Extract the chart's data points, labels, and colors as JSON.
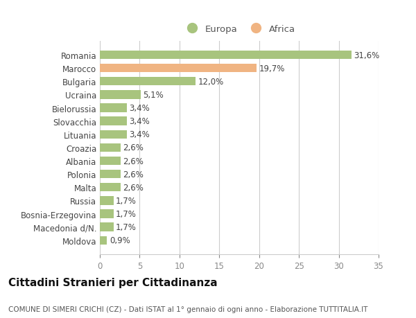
{
  "categories": [
    "Romania",
    "Marocco",
    "Bulgaria",
    "Ucraina",
    "Bielorussia",
    "Slovacchia",
    "Lituania",
    "Croazia",
    "Albania",
    "Polonia",
    "Malta",
    "Russia",
    "Bosnia-Erzegovina",
    "Macedonia d/N.",
    "Moldova"
  ],
  "values": [
    31.6,
    19.7,
    12.0,
    5.1,
    3.4,
    3.4,
    3.4,
    2.6,
    2.6,
    2.6,
    2.6,
    1.7,
    1.7,
    1.7,
    0.9
  ],
  "labels": [
    "31,6%",
    "19,7%",
    "12,0%",
    "5,1%",
    "3,4%",
    "3,4%",
    "3,4%",
    "2,6%",
    "2,6%",
    "2,6%",
    "2,6%",
    "1,7%",
    "1,7%",
    "1,7%",
    "0,9%"
  ],
  "colors": [
    "#a8c47e",
    "#f0b482",
    "#a8c47e",
    "#a8c47e",
    "#a8c47e",
    "#a8c47e",
    "#a8c47e",
    "#a8c47e",
    "#a8c47e",
    "#a8c47e",
    "#a8c47e",
    "#a8c47e",
    "#a8c47e",
    "#a8c47e",
    "#a8c47e"
  ],
  "legend_europa_color": "#a8c47e",
  "legend_africa_color": "#f0b482",
  "legend_europa_label": "Europa",
  "legend_africa_label": "Africa",
  "xlim": [
    0,
    35
  ],
  "xticks": [
    0,
    5,
    10,
    15,
    20,
    25,
    30,
    35
  ],
  "title": "Cittadini Stranieri per Cittadinanza",
  "subtitle": "COMUNE DI SIMERI CRICHI (CZ) - Dati ISTAT al 1° gennaio di ogni anno - Elaborazione TUTTITALIA.IT",
  "bg_color": "#ffffff",
  "grid_color": "#cccccc",
  "bar_height": 0.65,
  "label_fontsize": 8.5,
  "tick_fontsize": 8.5,
  "title_fontsize": 11,
  "subtitle_fontsize": 7.5
}
